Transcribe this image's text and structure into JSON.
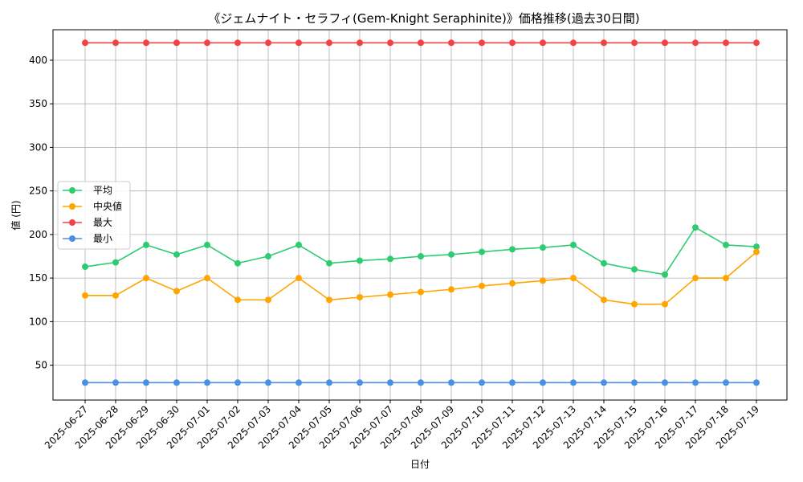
{
  "chart_data": {
    "type": "line",
    "title": "《ジェムナイト・セラフィ(Gem-Knight Seraphinite)》価格推移(過去30日間)",
    "xlabel": "日付",
    "ylabel": "値 (円)",
    "ylim": [
      10,
      435
    ],
    "yticks": [
      50,
      100,
      150,
      200,
      250,
      300,
      350,
      400
    ],
    "grid": true,
    "legend_position": "center-left",
    "x": [
      "2025-06-27",
      "2025-06-28",
      "2025-06-29",
      "2025-06-30",
      "2025-07-01",
      "2025-07-02",
      "2025-07-03",
      "2025-07-04",
      "2025-07-05",
      "2025-07-06",
      "2025-07-07",
      "2025-07-08",
      "2025-07-09",
      "2025-07-10",
      "2025-07-11",
      "2025-07-12",
      "2025-07-13",
      "2025-07-14",
      "2025-07-15",
      "2025-07-16",
      "2025-07-17",
      "2025-07-18",
      "2025-07-19"
    ],
    "series": [
      {
        "name": "平均",
        "color": "#2ecc71",
        "values": [
          163,
          168,
          188,
          177,
          188,
          167,
          175,
          188,
          167,
          170,
          172,
          175,
          177,
          180,
          183,
          185,
          188,
          167,
          160,
          154,
          208,
          188,
          186
        ]
      },
      {
        "name": "中央値",
        "color": "#ffa500",
        "values": [
          130,
          130,
          150,
          135,
          150,
          125,
          125,
          150,
          125,
          128,
          131,
          134,
          137,
          141,
          144,
          147,
          150,
          125,
          120,
          120,
          150,
          150,
          180
        ]
      },
      {
        "name": "最大",
        "color": "#ef4444",
        "values": [
          420,
          420,
          420,
          420,
          420,
          420,
          420,
          420,
          420,
          420,
          420,
          420,
          420,
          420,
          420,
          420,
          420,
          420,
          420,
          420,
          420,
          420,
          420
        ]
      },
      {
        "name": "最小",
        "color": "#4a90e2",
        "values": [
          30,
          30,
          30,
          30,
          30,
          30,
          30,
          30,
          30,
          30,
          30,
          30,
          30,
          30,
          30,
          30,
          30,
          30,
          30,
          30,
          30,
          30,
          30
        ]
      }
    ]
  }
}
